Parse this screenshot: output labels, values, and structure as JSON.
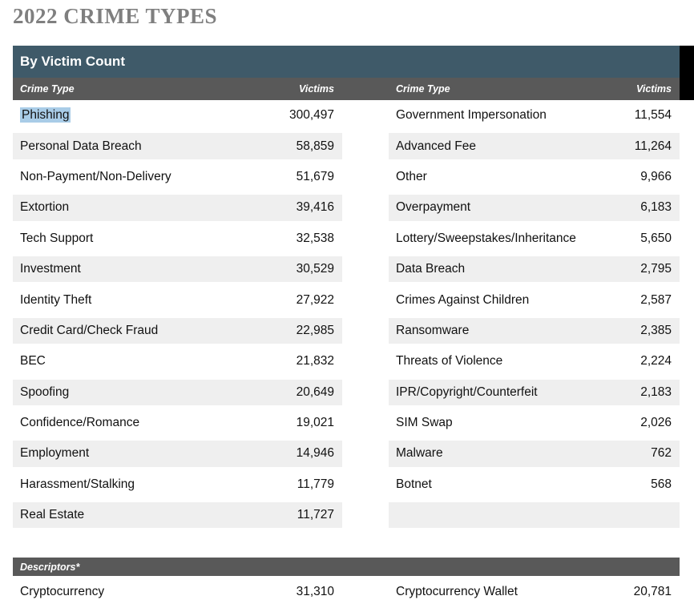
{
  "page_title": "2022 CRIME TYPES",
  "colors": {
    "section_teal": "#3F5A69",
    "header_gray": "#595959",
    "row_alt_gray": "#EFEFEF",
    "selection_highlight": "#A9CCE7",
    "title_gray": "#7F7F7F",
    "corner_strip": "#000000"
  },
  "table": {
    "section_title": "By Victim Count",
    "column_headers": {
      "crime_type": "Crime Type",
      "victims": "Victims"
    },
    "left_rows": [
      {
        "type": "Phishing",
        "victims": "300,497",
        "highlighted": true
      },
      {
        "type": "Personal Data Breach",
        "victims": "58,859"
      },
      {
        "type": "Non-Payment/Non-Delivery",
        "victims": "51,679"
      },
      {
        "type": "Extortion",
        "victims": "39,416"
      },
      {
        "type": "Tech Support",
        "victims": "32,538"
      },
      {
        "type": "Investment",
        "victims": "30,529"
      },
      {
        "type": "Identity Theft",
        "victims": "27,922"
      },
      {
        "type": "Credit Card/Check Fraud",
        "victims": "22,985"
      },
      {
        "type": "BEC",
        "victims": "21,832"
      },
      {
        "type": "Spoofing",
        "victims": "20,649"
      },
      {
        "type": "Confidence/Romance",
        "victims": "19,021"
      },
      {
        "type": "Employment",
        "victims": "14,946"
      },
      {
        "type": "Harassment/Stalking",
        "victims": "11,779"
      },
      {
        "type": "Real Estate",
        "victims": "11,727"
      }
    ],
    "right_rows": [
      {
        "type": "Government Impersonation",
        "victims": "11,554"
      },
      {
        "type": "Advanced Fee",
        "victims": "11,264"
      },
      {
        "type": "Other",
        "victims": "9,966"
      },
      {
        "type": "Overpayment",
        "victims": "6,183"
      },
      {
        "type": "Lottery/Sweepstakes/Inheritance",
        "victims": "5,650"
      },
      {
        "type": "Data Breach",
        "victims": "2,795"
      },
      {
        "type": "Crimes Against Children",
        "victims": "2,587"
      },
      {
        "type": "Ransomware",
        "victims": "2,385"
      },
      {
        "type": "Threats of Violence",
        "victims": "2,224"
      },
      {
        "type": "IPR/Copyright/Counterfeit",
        "victims": "2,183"
      },
      {
        "type": "SIM Swap",
        "victims": "2,026"
      },
      {
        "type": "Malware",
        "victims": "762"
      },
      {
        "type": "Botnet",
        "victims": "568"
      },
      {
        "type": "",
        "victims": ""
      }
    ]
  },
  "descriptors": {
    "section_title": "Descriptors*",
    "left": {
      "type": "Cryptocurrency",
      "victims": "31,310"
    },
    "right": {
      "type": "Cryptocurrency Wallet",
      "victims": "20,781"
    }
  }
}
